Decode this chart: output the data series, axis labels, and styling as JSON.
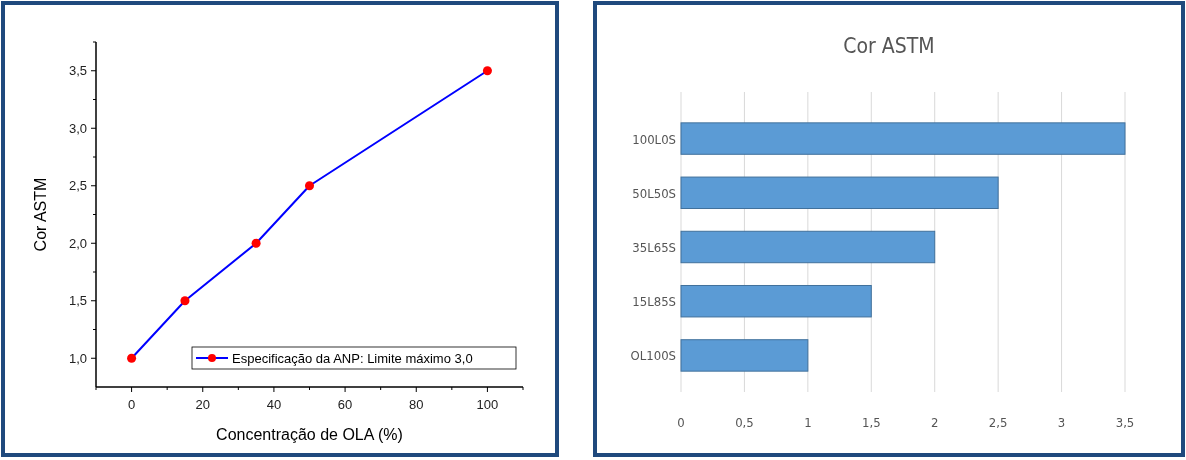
{
  "chart_data": [
    {
      "type": "line",
      "xlabel": "Concentração de OLA (%)",
      "ylabel": "Cor ASTM",
      "x": [
        0,
        15,
        35,
        50,
        100
      ],
      "series": [
        {
          "name": "Especificação da ANP: Limite máximo 3,0",
          "color": "#0000ff",
          "colors": [
            "#ff0000",
            "#ff0000",
            "#ff0000",
            "#ff0000",
            "#ff0000"
          ],
          "values": [
            1.0,
            1.5,
            2.0,
            2.5,
            3.5
          ]
        }
      ],
      "marker": "circle",
      "legend": "bottom right",
      "grid": false,
      "xlim": [
        -10,
        110
      ],
      "xticks": [
        {
          "value": -10,
          "label": null
        },
        0,
        {
          "value": 10,
          "label": null
        },
        20,
        {
          "value": 30,
          "label": null
        },
        40,
        {
          "value": 50,
          "label": null
        },
        60,
        {
          "value": 70,
          "label": null
        },
        80,
        {
          "value": 90,
          "label": null
        },
        100,
        {
          "value": 110,
          "label": null
        }
      ],
      "ylim": [
        0.75,
        3.75
      ],
      "yticks": [
        {
          "value": 1,
          "label": "1,0"
        },
        {
          "value": 1.25,
          "label": null
        },
        {
          "value": 1.5,
          "label": "1,5"
        },
        {
          "value": 1.75,
          "label": null
        },
        {
          "value": 2,
          "label": "2,0"
        },
        {
          "value": 2.25,
          "label": null
        },
        {
          "value": 2.5,
          "label": "2,5"
        },
        {
          "value": 2.75,
          "label": null
        },
        {
          "value": 3,
          "label": "3,0"
        },
        {
          "value": 3.25,
          "label": null
        },
        {
          "value": 3.5,
          "label": "3,5"
        },
        {
          "value": 3.75,
          "label": null
        }
      ]
    },
    {
      "type": "bar",
      "orientation": "horizontal",
      "title": "Cor ASTM",
      "categories": [
        "100L0S",
        "50L50S",
        "35L65S",
        "15L85S",
        "OL100S"
      ],
      "values": [
        3.5,
        2.5,
        2,
        1.5,
        1
      ],
      "color": "#5b9bd5",
      "grid": "x",
      "xlim": [
        0,
        3.5
      ],
      "xticks": [
        0,
        {
          "value": 0.5,
          "label": "0,5"
        },
        1,
        {
          "value": 1.5,
          "label": "1,5"
        },
        2,
        {
          "value": 2.5,
          "label": "2,5"
        },
        3,
        {
          "value": 3.5,
          "label": "3,5"
        }
      ]
    }
  ]
}
